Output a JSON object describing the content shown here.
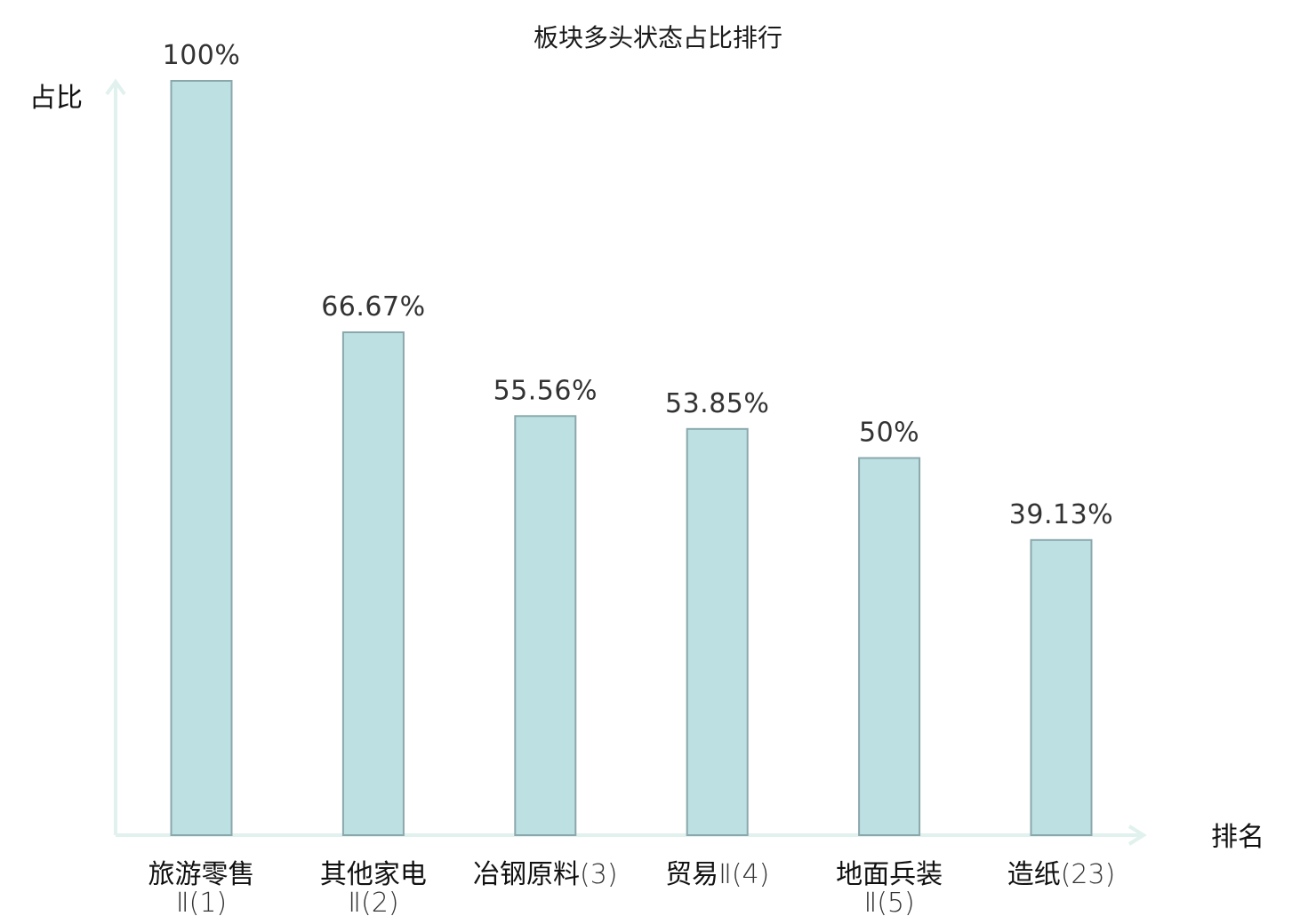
{
  "chart_data": {
    "type": "bar",
    "title": "板块多头状态占比排行",
    "ylabel": "占比",
    "xlabel": "排名",
    "ylim": [
      0,
      100
    ],
    "categories": [
      {
        "name": "旅游零售",
        "rank": "Ⅱ(1)",
        "rank_inline": false,
        "highlight": false
      },
      {
        "name": "其他家电",
        "rank": "Ⅱ(2)",
        "rank_inline": false,
        "highlight": false
      },
      {
        "name": "冶钢原料",
        "rank": "(3)",
        "rank_inline": true,
        "highlight": false
      },
      {
        "name": "贸易",
        "rank": "Ⅱ(4)",
        "rank_inline": true,
        "highlight": false
      },
      {
        "name": "地面兵装",
        "rank": "Ⅱ(5)",
        "rank_inline": false,
        "highlight": false
      },
      {
        "name": "造纸",
        "rank": "(23)",
        "rank_inline": true,
        "highlight": true
      }
    ],
    "values": [
      100,
      66.67,
      55.56,
      53.85,
      50,
      39.13
    ],
    "value_labels": [
      "100%",
      "66.67%",
      "55.56%",
      "53.85%",
      "50%",
      "39.13%"
    ],
    "grid": false,
    "colors": {
      "bar_fill": "#bde0e3",
      "bar_stroke": "#8aa8ac",
      "axis": "#e0f1ee",
      "highlight_text": "#e0191e"
    }
  }
}
